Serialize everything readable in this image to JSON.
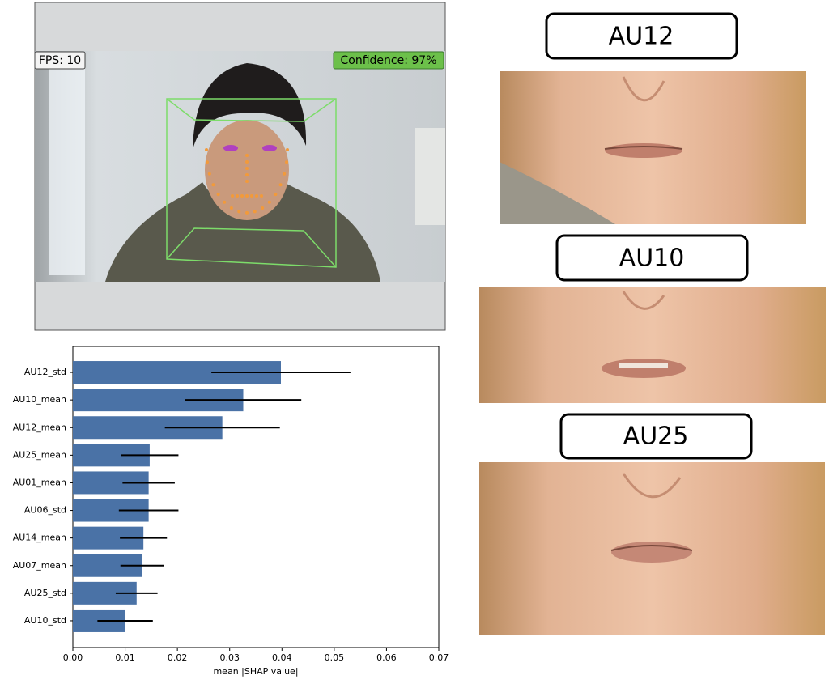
{
  "webcam": {
    "fps_label": "FPS: 10",
    "confidence_label": "Confidence: 97%"
  },
  "panels": [
    {
      "label": "AU12"
    },
    {
      "label": "AU10"
    },
    {
      "label": "AU25"
    }
  ],
  "chart_data": {
    "type": "barh",
    "categories": [
      "AU12_std",
      "AU10_mean",
      "AU12_mean",
      "AU25_mean",
      "AU01_mean",
      "AU06_std",
      "AU14_mean",
      "AU07_mean",
      "AU25_std",
      "AU10_std"
    ],
    "values": [
      0.0398,
      0.0326,
      0.0286,
      0.0147,
      0.0145,
      0.0145,
      0.0135,
      0.0133,
      0.0122,
      0.01
    ],
    "errors": [
      0.0133,
      0.0111,
      0.011,
      0.0055,
      0.005,
      0.0057,
      0.0045,
      0.0042,
      0.004,
      0.0053
    ],
    "color": "#4a72a6",
    "error_color": "#000000",
    "xlabel": "mean |SHAP value|",
    "xlim": [
      0,
      0.07
    ],
    "xticks": [
      {
        "value": 0,
        "label": "0.00"
      },
      0.01,
      0.02,
      0.03,
      0.04,
      0.05,
      0.06,
      0.07
    ]
  }
}
